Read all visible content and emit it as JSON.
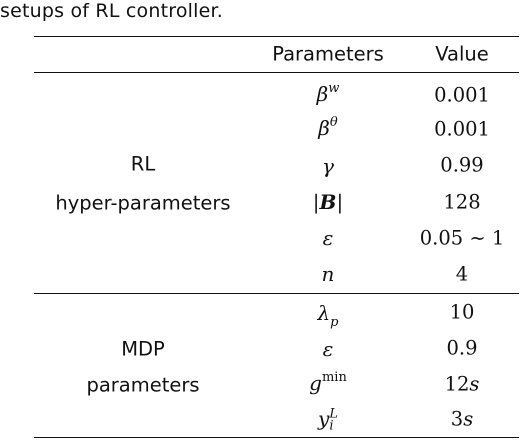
{
  "caption": "setups of RL controller.",
  "header": {
    "parameters": "Parameters",
    "value": "Value"
  },
  "groups": [
    {
      "label_line1": "RL",
      "label_line2": "hyper-parameters"
    },
    {
      "label_line1": "MDP",
      "label_line2": "parameters"
    }
  ],
  "rows": [
    {
      "symbol": "β",
      "superscript": "w",
      "value": "0.001"
    },
    {
      "symbol": "β",
      "superscript": "θ",
      "value": "0.001"
    },
    {
      "symbol": "γ",
      "value": "0.99"
    },
    {
      "symbol": "|B|",
      "symbol_bold": "B",
      "value": "128"
    },
    {
      "symbol": "ε",
      "value": "0.05 ∼ 1"
    },
    {
      "symbol": "n",
      "value": "4"
    },
    {
      "symbol": "λ",
      "subscript": "p",
      "value": "10"
    },
    {
      "symbol": "ε",
      "value": "0.9"
    },
    {
      "symbol": "g",
      "superscript": "min",
      "value": "12",
      "value_unit": "s"
    },
    {
      "symbol": "y",
      "superscript": "L",
      "subscript": "i",
      "value": "3",
      "value_unit": "s"
    }
  ]
}
